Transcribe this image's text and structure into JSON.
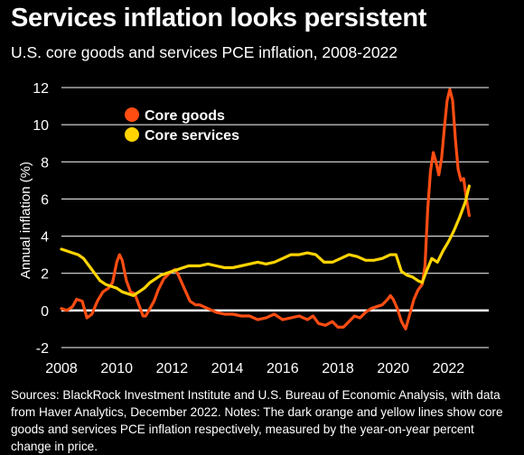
{
  "header": {
    "title": "Services inflation looks persistent",
    "subtitle": "U.S. core goods and services PCE inflation, 2008-2022"
  },
  "footnote": "Sources: BlackRock Investment Institute and U.S. Bureau of Economic Analysis, with data from Haver Analytics, December 2022. Notes: The dark orange and yellow lines show core goods and services PCE inflation respectively, measured by the year-on-year percent change in price.",
  "colors": {
    "background": "#000000",
    "core_goods": "#ff4d12",
    "core_services": "#ffd400",
    "axis": "#ffffff",
    "grid": "#ffffff"
  },
  "chart_data": {
    "type": "line",
    "title": "Services inflation looks persistent",
    "subtitle": "U.S. core goods and services PCE inflation, 2008-2022",
    "xlabel": "",
    "ylabel": "Annual inflation (%)",
    "xlim": [
      2008,
      2022.9
    ],
    "ylim": [
      -2,
      12
    ],
    "xticks": [
      "2008",
      "2010",
      "2012",
      "2014",
      "2016",
      "2018",
      "2020",
      "2022"
    ],
    "yticks": [
      "12",
      "10",
      "8",
      "6",
      "4",
      "2",
      "0",
      "-2"
    ],
    "grid": true,
    "legend": "top-left",
    "series": [
      {
        "name": "Core goods",
        "color": "#ff4d12",
        "points": [
          [
            2008.0,
            0.1
          ],
          [
            2008.2,
            0.0
          ],
          [
            2008.4,
            0.2
          ],
          [
            2008.55,
            0.6
          ],
          [
            2008.75,
            0.5
          ],
          [
            2008.92,
            -0.4
          ],
          [
            2009.1,
            -0.2
          ],
          [
            2009.3,
            0.5
          ],
          [
            2009.5,
            1.0
          ],
          [
            2009.7,
            1.2
          ],
          [
            2009.85,
            1.5
          ],
          [
            2010.0,
            2.6
          ],
          [
            2010.1,
            3.0
          ],
          [
            2010.2,
            2.7
          ],
          [
            2010.35,
            1.6
          ],
          [
            2010.5,
            1.0
          ],
          [
            2010.65,
            0.9
          ],
          [
            2010.8,
            0.3
          ],
          [
            2010.95,
            -0.3
          ],
          [
            2011.05,
            -0.3
          ],
          [
            2011.2,
            0.1
          ],
          [
            2011.35,
            0.5
          ],
          [
            2011.5,
            1.1
          ],
          [
            2011.7,
            1.7
          ],
          [
            2011.9,
            2.0
          ],
          [
            2012.1,
            2.2
          ],
          [
            2012.2,
            2.0
          ],
          [
            2012.35,
            1.5
          ],
          [
            2012.5,
            1.0
          ],
          [
            2012.65,
            0.5
          ],
          [
            2012.85,
            0.3
          ],
          [
            2013.0,
            0.3
          ],
          [
            2013.3,
            0.1
          ],
          [
            2013.6,
            -0.1
          ],
          [
            2013.9,
            -0.2
          ],
          [
            2014.2,
            -0.2
          ],
          [
            2014.5,
            -0.3
          ],
          [
            2014.8,
            -0.3
          ],
          [
            2015.1,
            -0.5
          ],
          [
            2015.4,
            -0.4
          ],
          [
            2015.7,
            -0.2
          ],
          [
            2016.0,
            -0.5
          ],
          [
            2016.3,
            -0.4
          ],
          [
            2016.6,
            -0.3
          ],
          [
            2016.9,
            -0.5
          ],
          [
            2017.1,
            -0.3
          ],
          [
            2017.3,
            -0.7
          ],
          [
            2017.55,
            -0.8
          ],
          [
            2017.8,
            -0.6
          ],
          [
            2018.0,
            -0.9
          ],
          [
            2018.2,
            -0.9
          ],
          [
            2018.4,
            -0.6
          ],
          [
            2018.6,
            -0.3
          ],
          [
            2018.8,
            -0.4
          ],
          [
            2019.0,
            -0.1
          ],
          [
            2019.2,
            0.1
          ],
          [
            2019.4,
            0.2
          ],
          [
            2019.6,
            0.3
          ],
          [
            2019.8,
            0.6
          ],
          [
            2019.9,
            0.8
          ],
          [
            2020.0,
            0.6
          ],
          [
            2020.15,
            0.1
          ],
          [
            2020.3,
            -0.6
          ],
          [
            2020.45,
            -1.0
          ],
          [
            2020.6,
            -0.2
          ],
          [
            2020.75,
            0.6
          ],
          [
            2020.9,
            1.1
          ],
          [
            2021.05,
            1.4
          ],
          [
            2021.15,
            2.4
          ],
          [
            2021.25,
            5.5
          ],
          [
            2021.35,
            7.5
          ],
          [
            2021.45,
            8.5
          ],
          [
            2021.55,
            8.0
          ],
          [
            2021.65,
            7.3
          ],
          [
            2021.75,
            8.2
          ],
          [
            2021.85,
            9.8
          ],
          [
            2021.95,
            11.3
          ],
          [
            2022.05,
            11.9
          ],
          [
            2022.15,
            11.3
          ],
          [
            2022.25,
            9.2
          ],
          [
            2022.35,
            7.6
          ],
          [
            2022.45,
            7.0
          ],
          [
            2022.55,
            7.1
          ],
          [
            2022.65,
            6.0
          ],
          [
            2022.75,
            5.1
          ]
        ]
      },
      {
        "name": "Core services",
        "color": "#ffd400",
        "points": [
          [
            2008.0,
            3.3
          ],
          [
            2008.2,
            3.2
          ],
          [
            2008.4,
            3.1
          ],
          [
            2008.6,
            3.0
          ],
          [
            2008.8,
            2.8
          ],
          [
            2009.0,
            2.4
          ],
          [
            2009.2,
            2.0
          ],
          [
            2009.4,
            1.6
          ],
          [
            2009.6,
            1.4
          ],
          [
            2009.8,
            1.3
          ],
          [
            2010.0,
            1.2
          ],
          [
            2010.2,
            1.0
          ],
          [
            2010.4,
            0.9
          ],
          [
            2010.6,
            0.8
          ],
          [
            2010.8,
            1.0
          ],
          [
            2011.0,
            1.2
          ],
          [
            2011.2,
            1.5
          ],
          [
            2011.4,
            1.7
          ],
          [
            2011.6,
            1.9
          ],
          [
            2011.8,
            2.0
          ],
          [
            2012.0,
            2.1
          ],
          [
            2012.2,
            2.2
          ],
          [
            2012.4,
            2.3
          ],
          [
            2012.6,
            2.4
          ],
          [
            2012.8,
            2.4
          ],
          [
            2013.0,
            2.4
          ],
          [
            2013.3,
            2.5
          ],
          [
            2013.6,
            2.4
          ],
          [
            2013.9,
            2.3
          ],
          [
            2014.2,
            2.3
          ],
          [
            2014.5,
            2.4
          ],
          [
            2014.8,
            2.5
          ],
          [
            2015.1,
            2.6
          ],
          [
            2015.4,
            2.5
          ],
          [
            2015.7,
            2.6
          ],
          [
            2016.0,
            2.8
          ],
          [
            2016.3,
            3.0
          ],
          [
            2016.6,
            3.0
          ],
          [
            2016.9,
            3.1
          ],
          [
            2017.2,
            3.0
          ],
          [
            2017.5,
            2.6
          ],
          [
            2017.8,
            2.6
          ],
          [
            2018.1,
            2.8
          ],
          [
            2018.4,
            3.0
          ],
          [
            2018.7,
            2.9
          ],
          [
            2019.0,
            2.7
          ],
          [
            2019.3,
            2.7
          ],
          [
            2019.6,
            2.8
          ],
          [
            2019.9,
            3.0
          ],
          [
            2020.1,
            3.0
          ],
          [
            2020.3,
            2.1
          ],
          [
            2020.5,
            1.9
          ],
          [
            2020.7,
            1.8
          ],
          [
            2020.9,
            1.6
          ],
          [
            2021.05,
            1.5
          ],
          [
            2021.2,
            2.1
          ],
          [
            2021.4,
            2.8
          ],
          [
            2021.6,
            2.6
          ],
          [
            2021.8,
            3.2
          ],
          [
            2022.0,
            3.7
          ],
          [
            2022.2,
            4.3
          ],
          [
            2022.4,
            5.0
          ],
          [
            2022.6,
            5.8
          ],
          [
            2022.75,
            6.7
          ]
        ]
      }
    ]
  }
}
